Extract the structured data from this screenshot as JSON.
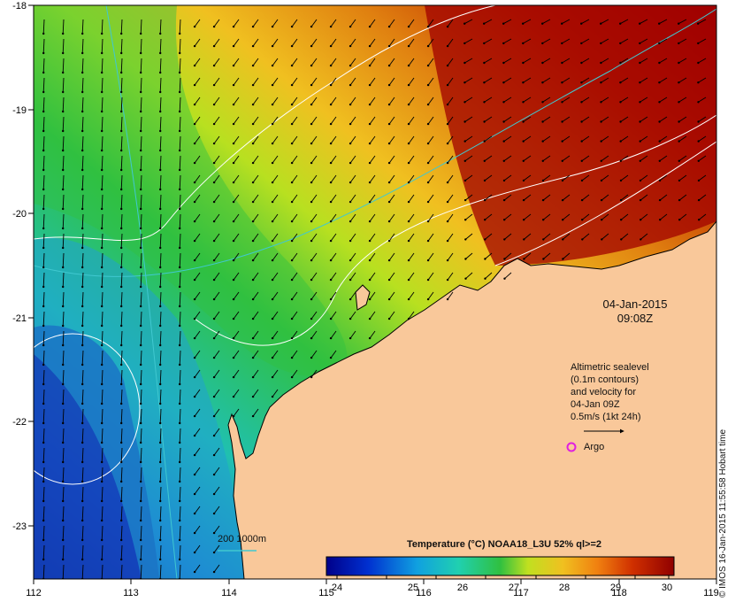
{
  "map": {
    "lon_ticks": [
      "112",
      "113",
      "114",
      "115",
      "116",
      "117",
      "118",
      "119"
    ],
    "lat_ticks": [
      "-18",
      "-19",
      "-20",
      "-21",
      "-22",
      "-23"
    ],
    "lon_range": [
      112,
      119
    ],
    "lat_range": [
      -23.55,
      -18.0
    ]
  },
  "date": {
    "day": "04-Jan-2015",
    "time": "09:08Z"
  },
  "altimetry": {
    "lines": [
      "Altimetric sealevel",
      "(0.1m contours)",
      "and velocity for",
      "04-Jan 09Z",
      "0.5m/s (1kt 24h)"
    ]
  },
  "argo": {
    "label": "Argo",
    "marker_color": "#e020e0"
  },
  "contour_legend": {
    "label": "200  1000m",
    "color": "#40c8d0"
  },
  "colorbar": {
    "title": "Temperature (°C) NOAA18_L3U 52% ql>=2",
    "ticks": [
      "24",
      "25",
      "26",
      "27",
      "28",
      "29",
      "30"
    ],
    "range": [
      23.2,
      30.2
    ]
  },
  "credit": "© IMOS 16-Jan-2015 11:55:58 Hobart time",
  "colors": {
    "land": "#f9c89a",
    "cold": "#0a1a8c",
    "mid": "#20c030",
    "warm": "#f0a020",
    "hot": "#a00000",
    "isobath": "#40c8d0",
    "sea_level_contour": "#ffffff"
  }
}
